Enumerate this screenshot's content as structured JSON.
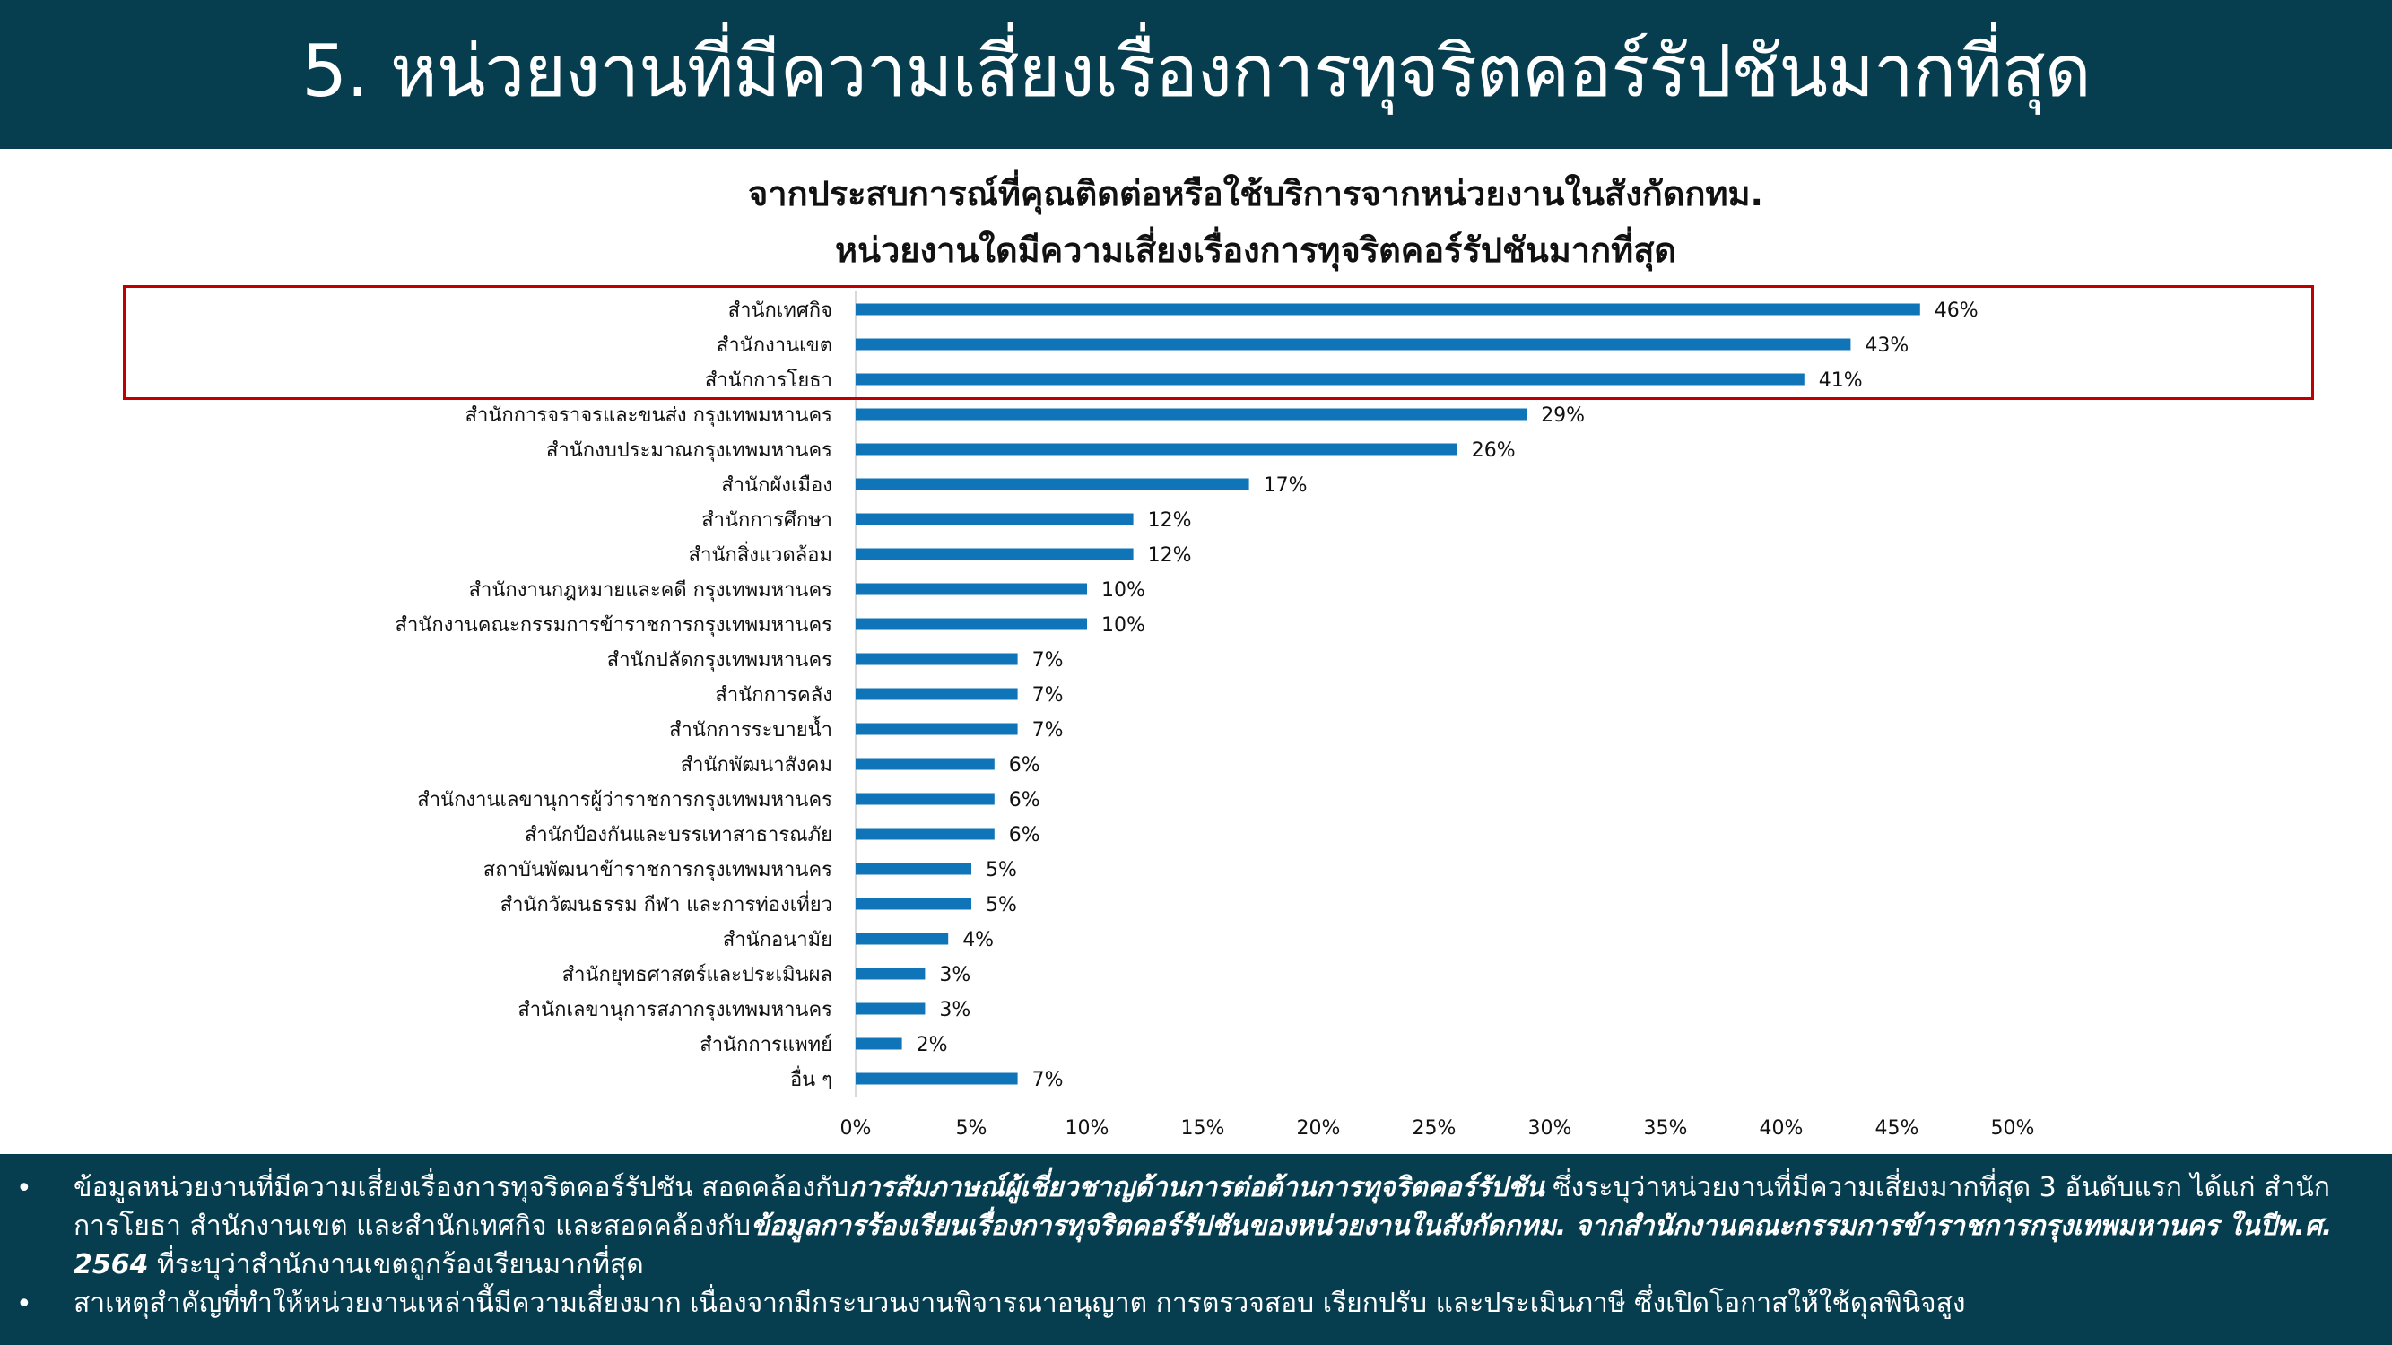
{
  "header": {
    "title": "5. หน่วยงานที่มีความเสี่ยงเรื่องการทุจริตคอร์รัปชันมากที่สุด"
  },
  "chart_data": {
    "type": "bar",
    "orientation": "horizontal",
    "title": "จากประสบการณ์ที่คุณติดต่อหรือใช้บริการจากหน่วยงานในสังกัดกทม.",
    "subtitle": "หน่วยงานใดมีความเสี่ยงเรื่องการทุจริตคอร์รัปชันมากที่สุด",
    "categories": [
      "สำนักเทศกิจ",
      "สำนักงานเขต",
      "สำนักการโยธา",
      "สำนักการจราจรและขนส่ง กรุงเทพมหานคร",
      "สำนักงบประมาณกรุงเทพมหานคร",
      "สำนักผังเมือง",
      "สำนักการศึกษา",
      "สำนักสิ่งแวดล้อม",
      "สำนักงานกฎหมายและคดี กรุงเทพมหานคร",
      "สำนักงานคณะกรรมการข้าราชการกรุงเทพมหานคร",
      "สำนักปลัดกรุงเทพมหานคร",
      "สำนักการคลัง",
      "สำนักการระบายน้ำ",
      "สำนักพัฒนาสังคม",
      "สำนักงานเลขานุการผู้ว่าราชการกรุงเทพมหานคร",
      "สำนักป้องกันและบรรเทาสาธารณภัย",
      "สถาบันพัฒนาข้าราชการกรุงเทพมหานคร",
      "สำนักวัฒนธรรม กีฬา และการท่องเที่ยว",
      "สำนักอนามัย",
      "สำนักยุทธศาสตร์และประเมินผล",
      "สำนักเลขานุการสภากรุงเทพมหานคร",
      "สำนักการแพทย์",
      "อื่น ๆ"
    ],
    "values": [
      46,
      43,
      41,
      29,
      26,
      17,
      12,
      12,
      10,
      10,
      7,
      7,
      7,
      6,
      6,
      6,
      5,
      5,
      4,
      3,
      3,
      2,
      7
    ],
    "value_labels": [
      "46%",
      "43%",
      "41%",
      "29%",
      "26%",
      "17%",
      "12%",
      "12%",
      "10%",
      "10%",
      "7%",
      "7%",
      "7%",
      "6%",
      "6%",
      "6%",
      "5%",
      "5%",
      "4%",
      "3%",
      "3%",
      "2%",
      "7%"
    ],
    "x_ticks": [
      "0%",
      "5%",
      "10%",
      "15%",
      "20%",
      "25%",
      "30%",
      "35%",
      "40%",
      "45%",
      "50%"
    ],
    "xlim": [
      0,
      50
    ],
    "grid": false,
    "highlighted_top": 3,
    "bar_color": "#1075b8",
    "highlight_color": "#c00000"
  },
  "footer": {
    "bullet_symbol": "•",
    "bullet1": {
      "p1": "ข้อมูลหน่วยงานที่มีความเสี่ยงเรื่องการทุจริตคอร์รัปชัน สอดคล้องกับ",
      "b1": "การสัมภาษณ์ผู้เชี่ยวชาญด้านการต่อต้านการทุจริตคอร์รัปชัน",
      "p2": " ซึ่งระบุว่าหน่วยงานที่มีความเสี่ยงมากที่สุด 3 อันดับแรก ได้แก่ สำนักการโยธา สำนักงานเขต และสำนักเทศกิจ และสอดคล้องกับ",
      "b2": "ข้อมูลการร้องเรียนเรื่องการทุจริตคอร์รัปชันของหน่วยงานในสังกัดกทม. จากสำนักงานคณะกรรมการข้าราชการกรุงเทพมหานคร ในปีพ.ศ. 2564",
      "p3": " ที่ระบุว่าสำนักงานเขตถูกร้องเรียนมากที่สุด"
    },
    "bullet2": "สาเหตุสำคัญที่ทำให้หน่วยงานเหล่านี้มีความเสี่ยงมาก เนื่องจากมีกระบวนงานพิจารณาอนุญาต การตรวจสอบ เรียกปรับ และประเมินภาษี ซึ่งเปิดโอกาสให้ใช้ดุลพินิจสูง"
  }
}
